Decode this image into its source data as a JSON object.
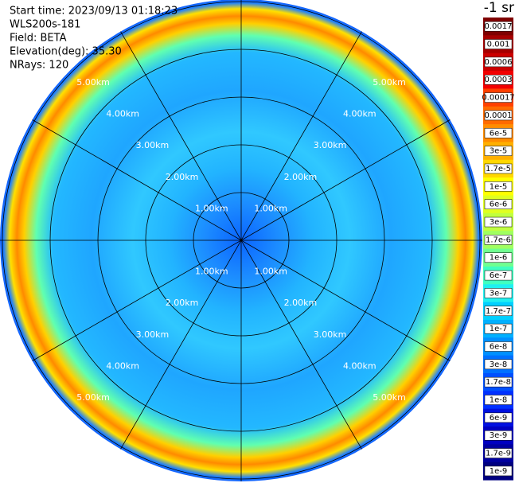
{
  "header": {
    "lines": [
      "Start time: 2023/09/13 01:18:23",
      "WLS200s-181",
      "Field: BETA",
      "Elevation(deg): 35.30",
      "NRays: 120"
    ]
  },
  "rings": [
    {
      "label": "1.00km"
    },
    {
      "label": "2.00km"
    },
    {
      "label": "3.00km"
    },
    {
      "label": "4.00km"
    },
    {
      "label": "5.00km"
    }
  ],
  "colorbar": {
    "unit": "-1 sr",
    "entries": [
      {
        "label": "0.0017",
        "color": "#7f0000"
      },
      {
        "label": "0.001",
        "color": "#a50000"
      },
      {
        "label": "0.0006",
        "color": "#cc0000"
      },
      {
        "label": "0.0003",
        "color": "#f20000"
      },
      {
        "label": "0.00017",
        "color": "#ff4000"
      },
      {
        "label": "0.0001",
        "color": "#ff6a00"
      },
      {
        "label": "6e-5",
        "color": "#ff8c00"
      },
      {
        "label": "3e-5",
        "color": "#ffb000"
      },
      {
        "label": "1.7e-5",
        "color": "#ffd700"
      },
      {
        "label": "1e-5",
        "color": "#ffff00"
      },
      {
        "label": "6e-6",
        "color": "#e0ff20"
      },
      {
        "label": "3e-6",
        "color": "#c0ff40"
      },
      {
        "label": "1.7e-6",
        "color": "#a0ff60"
      },
      {
        "label": "1e-6",
        "color": "#70ff90"
      },
      {
        "label": "6e-7",
        "color": "#40ffc0"
      },
      {
        "label": "3e-7",
        "color": "#20f0f0"
      },
      {
        "label": "1.7e-7",
        "color": "#00d0ff"
      },
      {
        "label": "1e-7",
        "color": "#00b0ff"
      },
      {
        "label": "6e-8",
        "color": "#0090ff"
      },
      {
        "label": "3e-8",
        "color": "#0070ff"
      },
      {
        "label": "1.7e-8",
        "color": "#0050ff"
      },
      {
        "label": "1e-8",
        "color": "#0030ff"
      },
      {
        "label": "6e-9",
        "color": "#0010e0"
      },
      {
        "label": "3e-9",
        "color": "#0000c0"
      },
      {
        "label": "1.7e-9",
        "color": "#0000a0"
      },
      {
        "label": "1e-9",
        "color": "#000080"
      }
    ]
  }
}
